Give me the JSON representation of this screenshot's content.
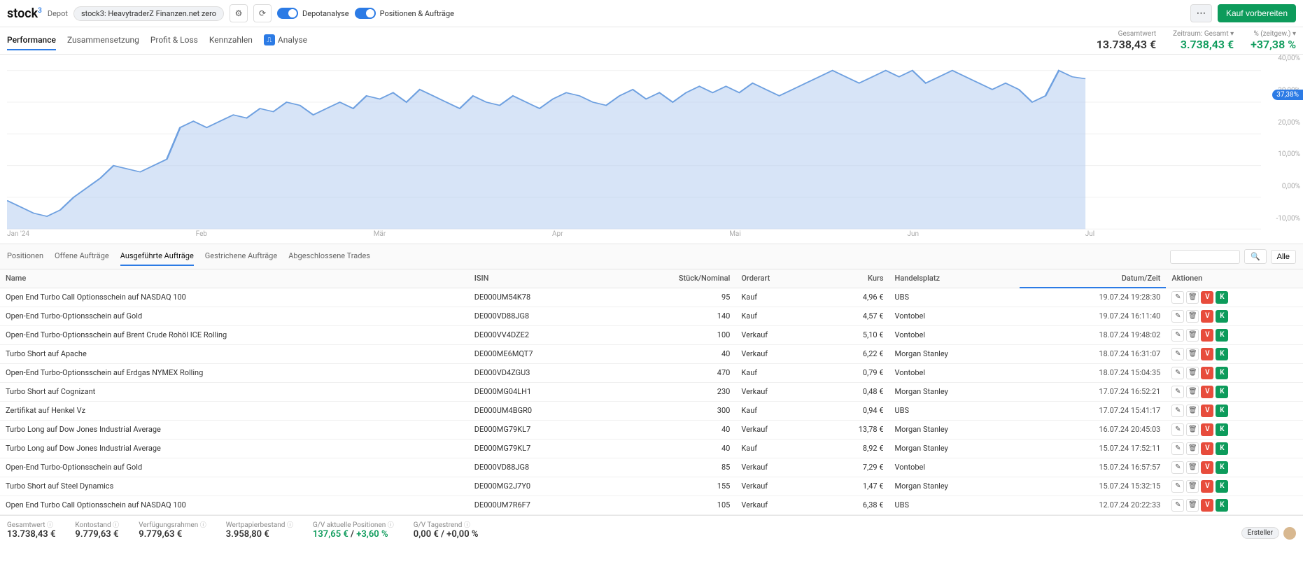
{
  "header": {
    "logo": "stock",
    "logo_sup": "3",
    "depot_label": "Depot",
    "depot_name": "stock3: HeavytraderZ Finanzen.net zero",
    "toggle1": "Depotanalyse",
    "toggle2": "Positionen & Aufträge",
    "buy_btn": "Kauf vorbereiten"
  },
  "tabs": {
    "items": [
      "Performance",
      "Zusammensetzung",
      "Profit & Loss",
      "Kennzahlen",
      "Analyse"
    ],
    "active": 0
  },
  "metrics": {
    "m1_label": "Gesamtwert",
    "m1_value": "13.738,43 €",
    "m2_label": "Zeitraum: Gesamt ▾",
    "m2_value": "3.738,43 €",
    "m3_label": "% (zeitgew.) ▾",
    "m3_value": "+37,38 %"
  },
  "chart": {
    "y_ticks": [
      "40,00%",
      "30,00%",
      "20,00%",
      "10,00%",
      "0,00%",
      "-10,00%"
    ],
    "x_ticks": [
      "Jan '24",
      "Feb",
      "Mär",
      "Apr",
      "Mai",
      "Jun",
      "Jul",
      ""
    ],
    "badge": "37,38%",
    "line_color": "#6ea0e0",
    "fill_color": "#b6cef0",
    "grid_color": "#f0f0f0",
    "values": [
      -1,
      -3,
      -5,
      -6,
      -4,
      0,
      3,
      6,
      10,
      9,
      8,
      10,
      12,
      22,
      24,
      22,
      24,
      26,
      25,
      28,
      27,
      30,
      29,
      26,
      28,
      30,
      28,
      32,
      31,
      33,
      30,
      34,
      32,
      30,
      28,
      32,
      30,
      29,
      32,
      30,
      28,
      31,
      33,
      32,
      30,
      29,
      32,
      34,
      31,
      33,
      30,
      33,
      35,
      33,
      35,
      33,
      36,
      34,
      32,
      34,
      36,
      38,
      40,
      38,
      36,
      38,
      40,
      38,
      40,
      36,
      38,
      40,
      38,
      36,
      34,
      36,
      34,
      30,
      32,
      40,
      38,
      37.38
    ],
    "y_min": -10,
    "y_max": 45
  },
  "lower_tabs": {
    "items": [
      "Positionen",
      "Offene Aufträge",
      "Ausgeführte Aufträge",
      "Gestrichene Aufträge",
      "Abgeschlossene Trades"
    ],
    "active": 2,
    "alle": "Alle"
  },
  "table": {
    "headers": [
      "Name",
      "ISIN",
      "Stück/Nominal",
      "Orderart",
      "Kurs",
      "Handelsplatz",
      "Datum/Zeit",
      "Aktionen"
    ],
    "rows": [
      {
        "name": "Open End Turbo Call Optionsschein auf NASDAQ 100",
        "isin": "DE000UM54K78",
        "qty": "95",
        "type": "Kauf",
        "price": "4,96 €",
        "venue": "UBS",
        "dt": "19.07.24 19:28:30"
      },
      {
        "name": "Open-End Turbo-Optionsschein auf Gold",
        "isin": "DE000VD88JG8",
        "qty": "140",
        "type": "Kauf",
        "price": "4,57 €",
        "venue": "Vontobel",
        "dt": "19.07.24 16:11:40"
      },
      {
        "name": "Open-End Turbo-Optionsschein auf Brent Crude Rohöl ICE Rolling",
        "isin": "DE000VV4DZE2",
        "qty": "100",
        "type": "Verkauf",
        "price": "5,10 €",
        "venue": "Vontobel",
        "dt": "18.07.24 19:48:02"
      },
      {
        "name": "Turbo Short auf Apache",
        "isin": "DE000ME6MQT7",
        "qty": "40",
        "type": "Verkauf",
        "price": "6,22 €",
        "venue": "Morgan Stanley",
        "dt": "18.07.24 16:31:07"
      },
      {
        "name": "Open-End Turbo-Optionsschein auf Erdgas NYMEX Rolling",
        "isin": "DE000VD4ZGU3",
        "qty": "470",
        "type": "Kauf",
        "price": "0,79 €",
        "venue": "Vontobel",
        "dt": "18.07.24 15:04:35"
      },
      {
        "name": "Turbo Short auf Cognizant",
        "isin": "DE000MG04LH1",
        "qty": "230",
        "type": "Verkauf",
        "price": "0,48 €",
        "venue": "Morgan Stanley",
        "dt": "17.07.24 16:52:21"
      },
      {
        "name": "Zertifikat auf Henkel Vz",
        "isin": "DE000UM4BGR0",
        "qty": "300",
        "type": "Kauf",
        "price": "0,94 €",
        "venue": "UBS",
        "dt": "17.07.24 15:41:17"
      },
      {
        "name": "Turbo Long auf Dow Jones Industrial Average",
        "isin": "DE000MG79KL7",
        "qty": "40",
        "type": "Verkauf",
        "price": "13,78 €",
        "venue": "Morgan Stanley",
        "dt": "16.07.24 20:45:03"
      },
      {
        "name": "Turbo Long auf Dow Jones Industrial Average",
        "isin": "DE000MG79KL7",
        "qty": "40",
        "type": "Kauf",
        "price": "8,92 €",
        "venue": "Morgan Stanley",
        "dt": "15.07.24 17:52:11"
      },
      {
        "name": "Open-End Turbo-Optionsschein auf Gold",
        "isin": "DE000VD88JG8",
        "qty": "85",
        "type": "Verkauf",
        "price": "7,29 €",
        "venue": "Vontobel",
        "dt": "15.07.24 16:57:57"
      },
      {
        "name": "Turbo Short auf Steel Dynamics",
        "isin": "DE000MG2J7Y0",
        "qty": "155",
        "type": "Verkauf",
        "price": "1,47 €",
        "venue": "Morgan Stanley",
        "dt": "15.07.24 15:32:15"
      },
      {
        "name": "Open End Turbo Call Optionsschein auf NASDAQ 100",
        "isin": "DE000UM7R6F7",
        "qty": "105",
        "type": "Verkauf",
        "price": "6,38 €",
        "venue": "UBS",
        "dt": "12.07.24 20:22:33"
      }
    ]
  },
  "footer": {
    "m1_l": "Gesamtwert",
    "m1_v": "13.738,43 €",
    "m2_l": "Kontostand",
    "m2_v": "9.779,63 €",
    "m3_l": "Verfügungsrahmen",
    "m3_v": "9.779,63 €",
    "m4_l": "Wertpapierbestand",
    "m4_v": "3.958,80 €",
    "m5_l": "G/V aktuelle Positionen",
    "m5_v1": "137,65 €",
    "m5_sep": " / ",
    "m5_v2": "+3,60 %",
    "m6_l": "G/V Tagestrend",
    "m6_v": "0,00 € / +0,00 %",
    "ersteller": "Ersteller"
  }
}
